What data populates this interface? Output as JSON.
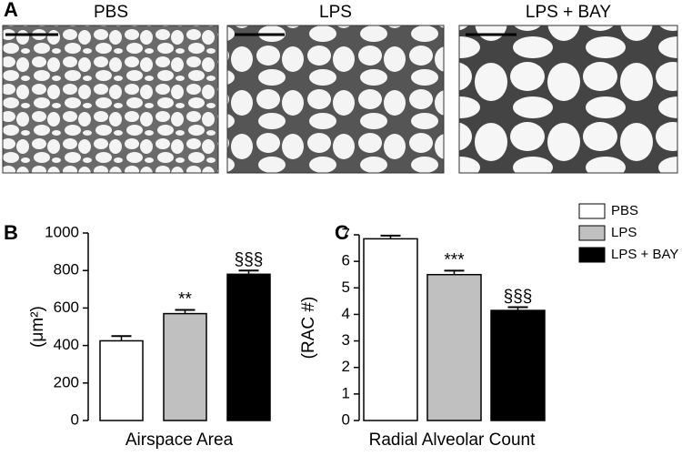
{
  "panel_a": {
    "label": "A",
    "titles": [
      "PBS",
      "LPS",
      "LPS + BAY"
    ]
  },
  "chart_data": [
    {
      "type": "bar",
      "panel_label": "B",
      "ylabel": "(μm²)",
      "xlabel": "Airspace Area",
      "ylim": [
        0,
        1000
      ],
      "yticks": [
        0,
        200,
        400,
        600,
        800,
        1000
      ],
      "series": [
        {
          "color": "#ffffff",
          "values": [
            425
          ],
          "errors": [
            25
          ]
        },
        {
          "color": "#c0c0c0",
          "values": [
            570
          ],
          "errors": [
            20
          ],
          "annotation": "**"
        },
        {
          "color": "#000000",
          "values": [
            780
          ],
          "errors": [
            20
          ],
          "annotation": "§§§"
        }
      ]
    },
    {
      "type": "bar",
      "panel_label": "C",
      "ylabel": "(RAC #)",
      "xlabel": "Radial Alveolar Count",
      "ylim": [
        0,
        7
      ],
      "yticks": [
        0,
        1,
        2,
        3,
        4,
        5,
        6,
        7
      ],
      "legend": "upper-right",
      "series": [
        {
          "name": "PBS",
          "color": "#ffffff",
          "values": [
            6.85
          ],
          "errors": [
            0.12
          ]
        },
        {
          "name": "LPS",
          "color": "#c0c0c0",
          "values": [
            5.5
          ],
          "errors": [
            0.15
          ],
          "annotation": "***"
        },
        {
          "name": "LPS + BAY",
          "color": "#000000",
          "values": [
            4.15
          ],
          "errors": [
            0.12
          ],
          "annotation": "§§§"
        }
      ]
    }
  ]
}
